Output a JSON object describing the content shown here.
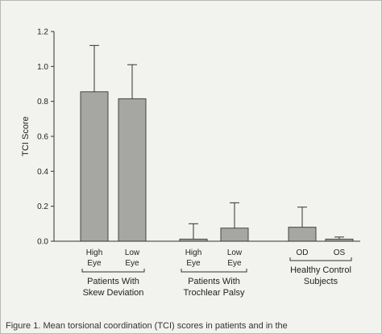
{
  "chart_data": {
    "type": "bar",
    "ylabel": "TCI Score",
    "ylim": [
      0,
      1.2
    ],
    "yticks": [
      "0.0",
      "0.2",
      "0.4",
      "0.6",
      "0.8",
      "1.0",
      "1.2"
    ],
    "ytick_values": [
      0,
      0.2,
      0.4,
      0.6,
      0.8,
      1.0,
      1.2
    ],
    "grid": false,
    "groups": [
      {
        "label_lines": [
          "Patients With",
          "Skew Deviation"
        ],
        "bars": [
          {
            "category": [
              "High",
              "Eye"
            ],
            "value": 0.855,
            "error": 0.265
          },
          {
            "category": [
              "Low",
              "Eye"
            ],
            "value": 0.815,
            "error": 0.195
          }
        ]
      },
      {
        "label_lines": [
          "Patients With",
          "Trochlear Palsy"
        ],
        "bars": [
          {
            "category": [
              "High",
              "Eye"
            ],
            "value": 0.012,
            "error": 0.088
          },
          {
            "category": [
              "Low",
              "Eye"
            ],
            "value": 0.075,
            "error": 0.145
          }
        ]
      },
      {
        "label_lines": [
          "Healthy Control",
          "Subjects"
        ],
        "bars": [
          {
            "category": [
              "OD"
            ],
            "value": 0.08,
            "error": 0.115
          },
          {
            "category": [
              "OS"
            ],
            "value": 0.012,
            "error": 0.012
          }
        ]
      }
    ],
    "bar_color": "#a6a6a3",
    "bar_edge": "#444444"
  },
  "caption": "Figure 1. Mean torsional coordination (TCI) scores in patients and in the"
}
